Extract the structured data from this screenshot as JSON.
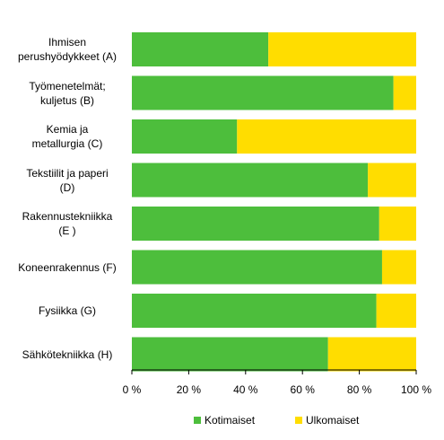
{
  "chart_data": {
    "type": "bar",
    "orientation": "horizontal",
    "stacked": true,
    "categories": [
      [
        "Ihmisen",
        "perushyödykkeet (A)"
      ],
      [
        "Työmenetelmät;",
        "kuljetus (B)"
      ],
      [
        "Kemia ja",
        "metallurgia (C)"
      ],
      [
        "Tekstiilit ja paperi",
        "(D)"
      ],
      [
        "Rakennustekniikka",
        "(E )"
      ],
      [
        "Koneenrakennus (F)"
      ],
      [
        "Fysiikka (G)"
      ],
      [
        "Sähkötekniikka (H)"
      ]
    ],
    "series": [
      {
        "name": "Kotimaiset",
        "color": "#4dbe3c",
        "values": [
          48,
          92,
          37,
          83,
          87,
          88,
          86,
          69
        ]
      },
      {
        "name": "Ulkomaiset",
        "color": "#ffdd00",
        "values": [
          52,
          8,
          63,
          17,
          13,
          12,
          14,
          31
        ]
      }
    ],
    "xlim": [
      0,
      100
    ],
    "xticks": [
      "0 %",
      "20 %",
      "40 %",
      "60 %",
      "80 %",
      "100 %"
    ],
    "xtick_values": [
      0,
      20,
      40,
      60,
      80,
      100
    ],
    "grid": false,
    "legend_position": "bottom"
  }
}
